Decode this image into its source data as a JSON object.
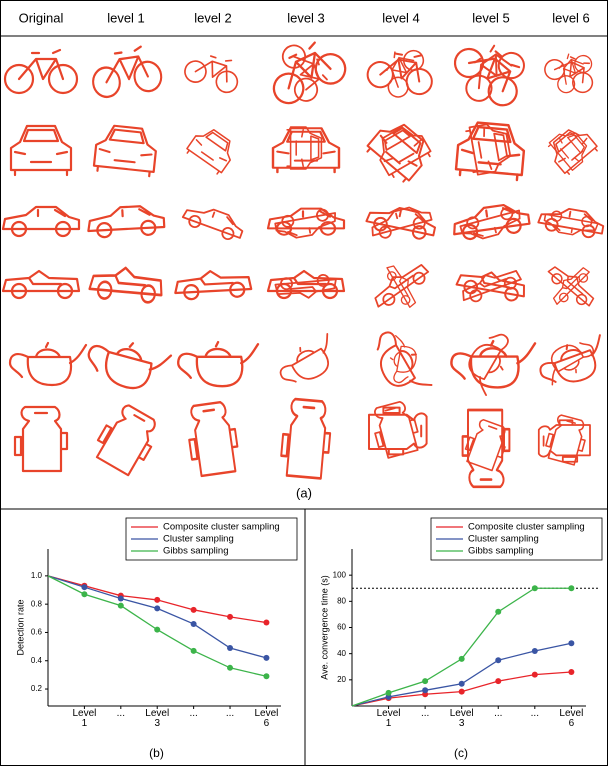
{
  "figure": {
    "columns": [
      "Original",
      "level 1",
      "level 2",
      "level 3",
      "level 4",
      "level 5",
      "level 6"
    ],
    "label": "(a)"
  },
  "chart_data": [
    {
      "type": "line",
      "label": "(b)",
      "y_label": "Detection rate",
      "x": [
        0,
        1,
        2,
        3,
        4,
        5,
        6
      ],
      "xlim": [
        0,
        6.4
      ],
      "xticks": [
        {
          "value": 1,
          "label": "Level 1"
        },
        {
          "value": 2,
          "label": "..."
        },
        {
          "value": 3,
          "label": "Level 3"
        },
        {
          "value": 4,
          "label": "..."
        },
        {
          "value": 5,
          "label": "..."
        },
        {
          "value": 6,
          "label": "Level 6"
        }
      ],
      "ylim": [
        0.08,
        1.19
      ],
      "yticks": [
        0.2,
        0.4,
        0.6,
        0.8,
        {
          "value": 1,
          "label": "1.0"
        }
      ],
      "legend": "upper right",
      "series": [
        {
          "name": "Composite cluster sampling",
          "color": "#e8242a",
          "values": [
            1.0,
            0.93,
            0.86,
            0.83,
            0.76,
            0.71,
            0.67
          ]
        },
        {
          "name": "Cluster sampling",
          "color": "#3a55a4",
          "values": [
            1.0,
            0.92,
            0.84,
            0.77,
            0.66,
            0.49,
            0.42
          ]
        },
        {
          "name": "Gibbs sampling",
          "color": "#3cb44a",
          "values": [
            1.0,
            0.87,
            0.79,
            0.62,
            0.47,
            0.35,
            0.29
          ]
        }
      ]
    },
    {
      "type": "line",
      "label": "(c)",
      "y_label": "Ave. convergence time (s)",
      "x": [
        0,
        1,
        2,
        3,
        4,
        5,
        6
      ],
      "xlim": [
        0,
        6.4
      ],
      "xticks": [
        {
          "value": 1,
          "label": "Level 1"
        },
        {
          "value": 2,
          "label": "..."
        },
        {
          "value": 3,
          "label": "Level 3"
        },
        {
          "value": 4,
          "label": "..."
        },
        {
          "value": 5,
          "label": "..."
        },
        {
          "value": 6,
          "label": "Level 6"
        }
      ],
      "ylim": [
        0,
        120
      ],
      "yticks": [
        20,
        40,
        60,
        80,
        100
      ],
      "legend": "upper right",
      "reference_line": 90,
      "series": [
        {
          "name": "Composite cluster sampling",
          "color": "#e8242a",
          "values": [
            0,
            6,
            9,
            11,
            19,
            24,
            26
          ]
        },
        {
          "name": "Cluster sampling",
          "color": "#3a55a4",
          "values": [
            0,
            7,
            12,
            17,
            35,
            42,
            48
          ]
        },
        {
          "name": "Gibbs sampling",
          "color": "#3cb44a",
          "values": [
            0,
            10,
            19,
            36,
            72,
            90,
            90
          ]
        }
      ]
    }
  ]
}
